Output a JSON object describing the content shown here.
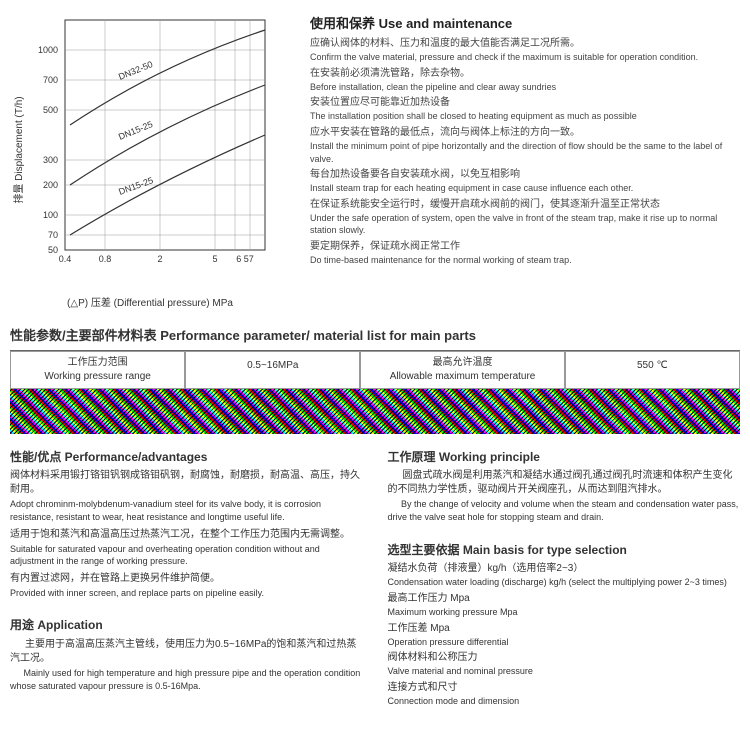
{
  "chart": {
    "y_label_cn": "排量",
    "y_label_en": "Displacement (T/h)",
    "y_ticks": [
      "50",
      "70",
      "100",
      "200",
      "300",
      "500",
      "700",
      "1000"
    ],
    "x_ticks": [
      "0.4",
      "0.8",
      "2",
      "5",
      "6 57"
    ],
    "x_label_cn": "(△P) 压差",
    "x_label_en": "(Differential pressure) MPa",
    "series": [
      "DN32-50",
      "DN15-25",
      "DN15-25"
    ],
    "grid_color": "#999",
    "axis_color": "#333",
    "line_color": "#333"
  },
  "use": {
    "title": "使用和保养  Use and maintenance",
    "items": [
      {
        "cn": "应确认阀体的材料、压力和温度的最大值能否满足工况所需。",
        "en": "Confirm the valve material, pressure and check if the maximum is suitable for operation condition."
      },
      {
        "cn": "在安装前必须清洗管路，除去杂物。",
        "en": "Before installation, clean the pipeline and clear away sundries"
      },
      {
        "cn": "安装位置应尽可能靠近加热设备",
        "en": "The installation position shall be closed to heating equipment as much as possible"
      },
      {
        "cn": "应水平安装在管路的最低点，流向与阀体上标注的方向一致。",
        "en": "Install the minimum point of pipe horizontally and the direction of flow should be the same to the label of valve."
      },
      {
        "cn": "每台加热设备要各自安装疏水阀，以免互相影响",
        "en": "Install steam trap for each heating equipment in case cause influence each other."
      },
      {
        "cn": "在保证系统能安全运行时，缓慢开启疏水阀前的阀门，使其逐渐升温至正常状态",
        "en": "Under the safe operation of system, open the valve in front of the steam trap, make it rise up to normal station slowly."
      },
      {
        "cn": "要定期保养，保证疏水阀正常工作",
        "en": "Do time-based maintenance for the normal working of steam trap."
      }
    ]
  },
  "param": {
    "title": "性能参数/主要部件材料表  Performance parameter/ material list for main parts",
    "h1_cn": "工作压力范围",
    "h1_en": "Working pressure range",
    "v1": "0.5~16MPa",
    "h2_cn": "最高允许温度",
    "h2_en": "Allowable maximum temperature",
    "v2": "550 ℃"
  },
  "perf": {
    "title": "性能/优点  Performance/advantages",
    "items": [
      {
        "cn": "阀体材料采用锻打铬钼钒钢成铬钼矾钢，耐腐蚀，耐磨损，耐高温、高压，持久耐用。",
        "en": "Adopt chrominm-molybdenum-vanadium steel for its valve body, it is corrosion resistance, resistant to wear, heat resistance and longtime useful life."
      },
      {
        "cn": "适用于饱和蒸汽和高温高压过热蒸汽工况，在整个工作压力范围内无需调整。",
        "en": "Suitable for saturated vapour and overheating operation condition without and adjustment in the range of working pressure."
      },
      {
        "cn": "有内置过滤网，并在管路上更换另件维护简便。",
        "en": "Provided with inner screen, and replace parts on pipeline easily."
      }
    ]
  },
  "app": {
    "title": "用途  Application",
    "cn": "主要用于高温高压蒸汽主管线，使用压力为0.5~16MPa的饱和蒸汽和过热蒸汽工况。",
    "en": "Mainly used for high temperature and high pressure pipe and the operation condition whose saturated vapour pressure is 0.5-16Mpa."
  },
  "work": {
    "title": "工作原理  Working principle",
    "cn": "圆盘式疏水阀是利用蒸汽和凝结水通过阀孔通过阀孔时流速和体积产生变化的不同热力学性质，驱动阀片开关阀座孔，从而达到阻汽排水。",
    "en": "By the change of velocity and volume when the steam and condensation water pass, drive the valve seat hole for stopping steam and drain."
  },
  "basis": {
    "title": "选型主要依据  Main basis for type selection",
    "items": [
      {
        "cn": "凝结水负荷（排液量）kg/h（选用倍率2~3）",
        "en": "Condensation water loading (discharge) kg/h (select the multiplying power 2~3 times)"
      },
      {
        "cn": "最高工作压力 Mpa",
        "en": "Maximum working pressure Mpa"
      },
      {
        "cn": "工作压差 Mpa",
        "en": "Operation pressure differential"
      },
      {
        "cn": "阀体材料和公称压力",
        "en": "Valve material and nominal pressure"
      },
      {
        "cn": "连接方式和尺寸",
        "en": "Connection mode and dimension"
      }
    ]
  }
}
